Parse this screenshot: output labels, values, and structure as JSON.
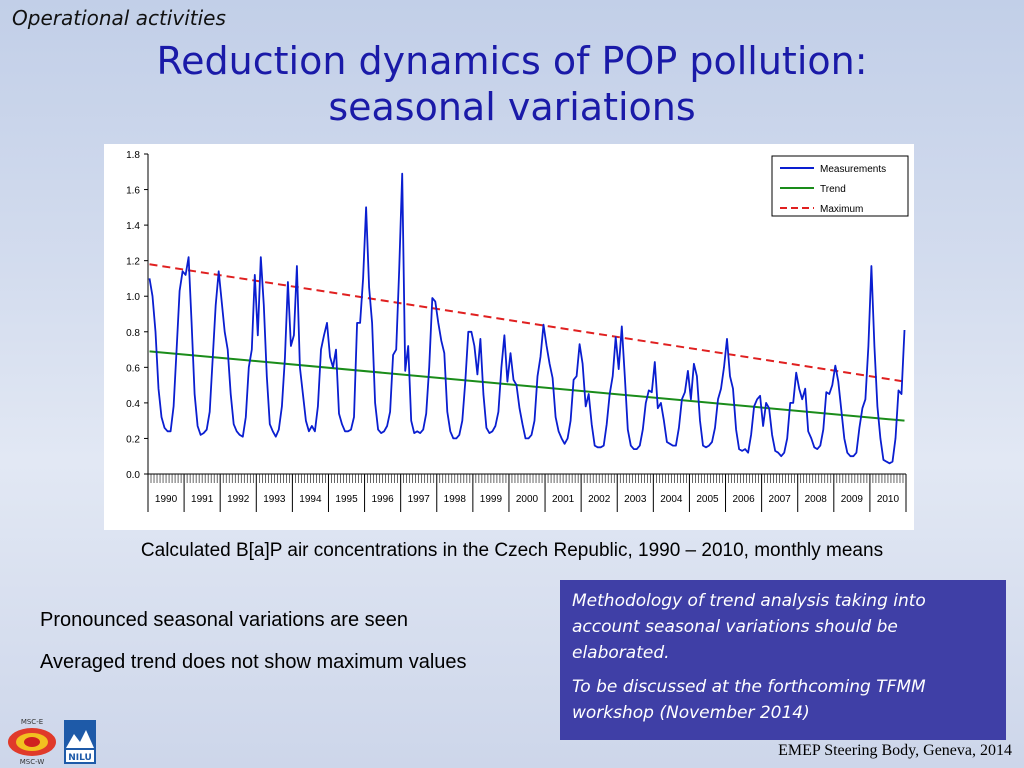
{
  "header": {
    "section_tag": "Operational activities",
    "title_line1": "Reduction dynamics of POP pollution:",
    "title_line2": "seasonal variations"
  },
  "chart_data": {
    "type": "line",
    "ylim": [
      0,
      1.8
    ],
    "yticks": [
      "0.0",
      "0.2",
      "0.4",
      "0.6",
      "0.8",
      "1.0",
      "1.2",
      "1.4",
      "1.6",
      "1.8"
    ],
    "years": [
      "1990",
      "1991",
      "1992",
      "1993",
      "1994",
      "1995",
      "1996",
      "1997",
      "1998",
      "1999",
      "2000",
      "2001",
      "2002",
      "2003",
      "2004",
      "2005",
      "2006",
      "2007",
      "2008",
      "2009",
      "2010"
    ],
    "grid": false,
    "legend_position": "top-right",
    "series": [
      {
        "name": "Measurements",
        "color": "#0a1ed0",
        "style": "solid",
        "values": [
          1.1,
          1.0,
          0.8,
          0.48,
          0.32,
          0.26,
          0.24,
          0.24,
          0.38,
          0.7,
          1.03,
          1.14,
          1.12,
          1.22,
          0.85,
          0.45,
          0.27,
          0.22,
          0.23,
          0.25,
          0.35,
          0.65,
          0.95,
          1.14,
          0.97,
          0.8,
          0.7,
          0.45,
          0.28,
          0.24,
          0.22,
          0.21,
          0.32,
          0.6,
          0.7,
          1.12,
          0.78,
          1.22,
          0.95,
          0.55,
          0.28,
          0.24,
          0.21,
          0.25,
          0.38,
          0.65,
          1.08,
          0.72,
          0.78,
          1.17,
          0.6,
          0.45,
          0.3,
          0.24,
          0.27,
          0.24,
          0.38,
          0.7,
          0.78,
          0.85,
          0.66,
          0.6,
          0.7,
          0.34,
          0.28,
          0.24,
          0.24,
          0.25,
          0.32,
          0.85,
          0.85,
          1.1,
          1.5,
          1.05,
          0.85,
          0.4,
          0.25,
          0.23,
          0.24,
          0.27,
          0.35,
          0.67,
          0.7,
          1.15,
          1.69,
          0.58,
          0.72,
          0.3,
          0.23,
          0.24,
          0.23,
          0.25,
          0.34,
          0.6,
          0.99,
          0.97,
          0.85,
          0.75,
          0.68,
          0.35,
          0.24,
          0.2,
          0.2,
          0.22,
          0.3,
          0.52,
          0.8,
          0.8,
          0.72,
          0.56,
          0.76,
          0.45,
          0.26,
          0.23,
          0.24,
          0.27,
          0.35,
          0.6,
          0.78,
          0.52,
          0.68,
          0.53,
          0.5,
          0.37,
          0.28,
          0.2,
          0.2,
          0.22,
          0.3,
          0.55,
          0.66,
          0.84,
          0.72,
          0.62,
          0.54,
          0.32,
          0.24,
          0.2,
          0.17,
          0.2,
          0.3,
          0.53,
          0.55,
          0.73,
          0.62,
          0.38,
          0.45,
          0.28,
          0.16,
          0.15,
          0.15,
          0.16,
          0.28,
          0.45,
          0.55,
          0.77,
          0.59,
          0.83,
          0.55,
          0.25,
          0.16,
          0.14,
          0.14,
          0.16,
          0.25,
          0.4,
          0.47,
          0.46,
          0.63,
          0.37,
          0.4,
          0.3,
          0.18,
          0.17,
          0.16,
          0.16,
          0.26,
          0.42,
          0.46,
          0.58,
          0.42,
          0.62,
          0.55,
          0.3,
          0.16,
          0.15,
          0.16,
          0.18,
          0.26,
          0.42,
          0.48,
          0.6,
          0.76,
          0.55,
          0.48,
          0.25,
          0.14,
          0.13,
          0.14,
          0.12,
          0.22,
          0.38,
          0.42,
          0.44,
          0.27,
          0.4,
          0.37,
          0.22,
          0.13,
          0.12,
          0.1,
          0.12,
          0.2,
          0.4,
          0.4,
          0.57,
          0.48,
          0.42,
          0.48,
          0.24,
          0.2,
          0.15,
          0.14,
          0.16,
          0.25,
          0.46,
          0.45,
          0.5,
          0.61,
          0.52,
          0.36,
          0.2,
          0.12,
          0.1,
          0.1,
          0.12,
          0.26,
          0.37,
          0.42,
          0.72,
          1.17,
          0.72,
          0.38,
          0.2,
          0.08,
          0.07,
          0.06,
          0.07,
          0.2,
          0.47,
          0.45,
          0.81
        ]
      },
      {
        "name": "Trend",
        "color": "#1a8c1a",
        "style": "solid",
        "start": 0.69,
        "end": 0.3
      },
      {
        "name": "Maximum",
        "color": "#e02020",
        "style": "dashed",
        "start": 1.18,
        "end": 0.52
      }
    ]
  },
  "caption": "Calculated B[a]P air concentrations in the Czech Republic, 1990 – 2010, monthly means",
  "bullets": [
    "Pronounced seasonal variations are seen",
    "Averaged trend does not show maximum values"
  ],
  "note_box": {
    "para1": "Methodology of trend analysis taking into account seasonal variations should be elaborated.",
    "para2": "To be discussed at the forthcoming TFMM workshop (November 2014)"
  },
  "footer": "EMEP Steering Body, Geneva, 2014",
  "logos": {
    "msc_top": "MSC-E",
    "msc_bottom": "MSC-W",
    "nilu": "NILU"
  }
}
